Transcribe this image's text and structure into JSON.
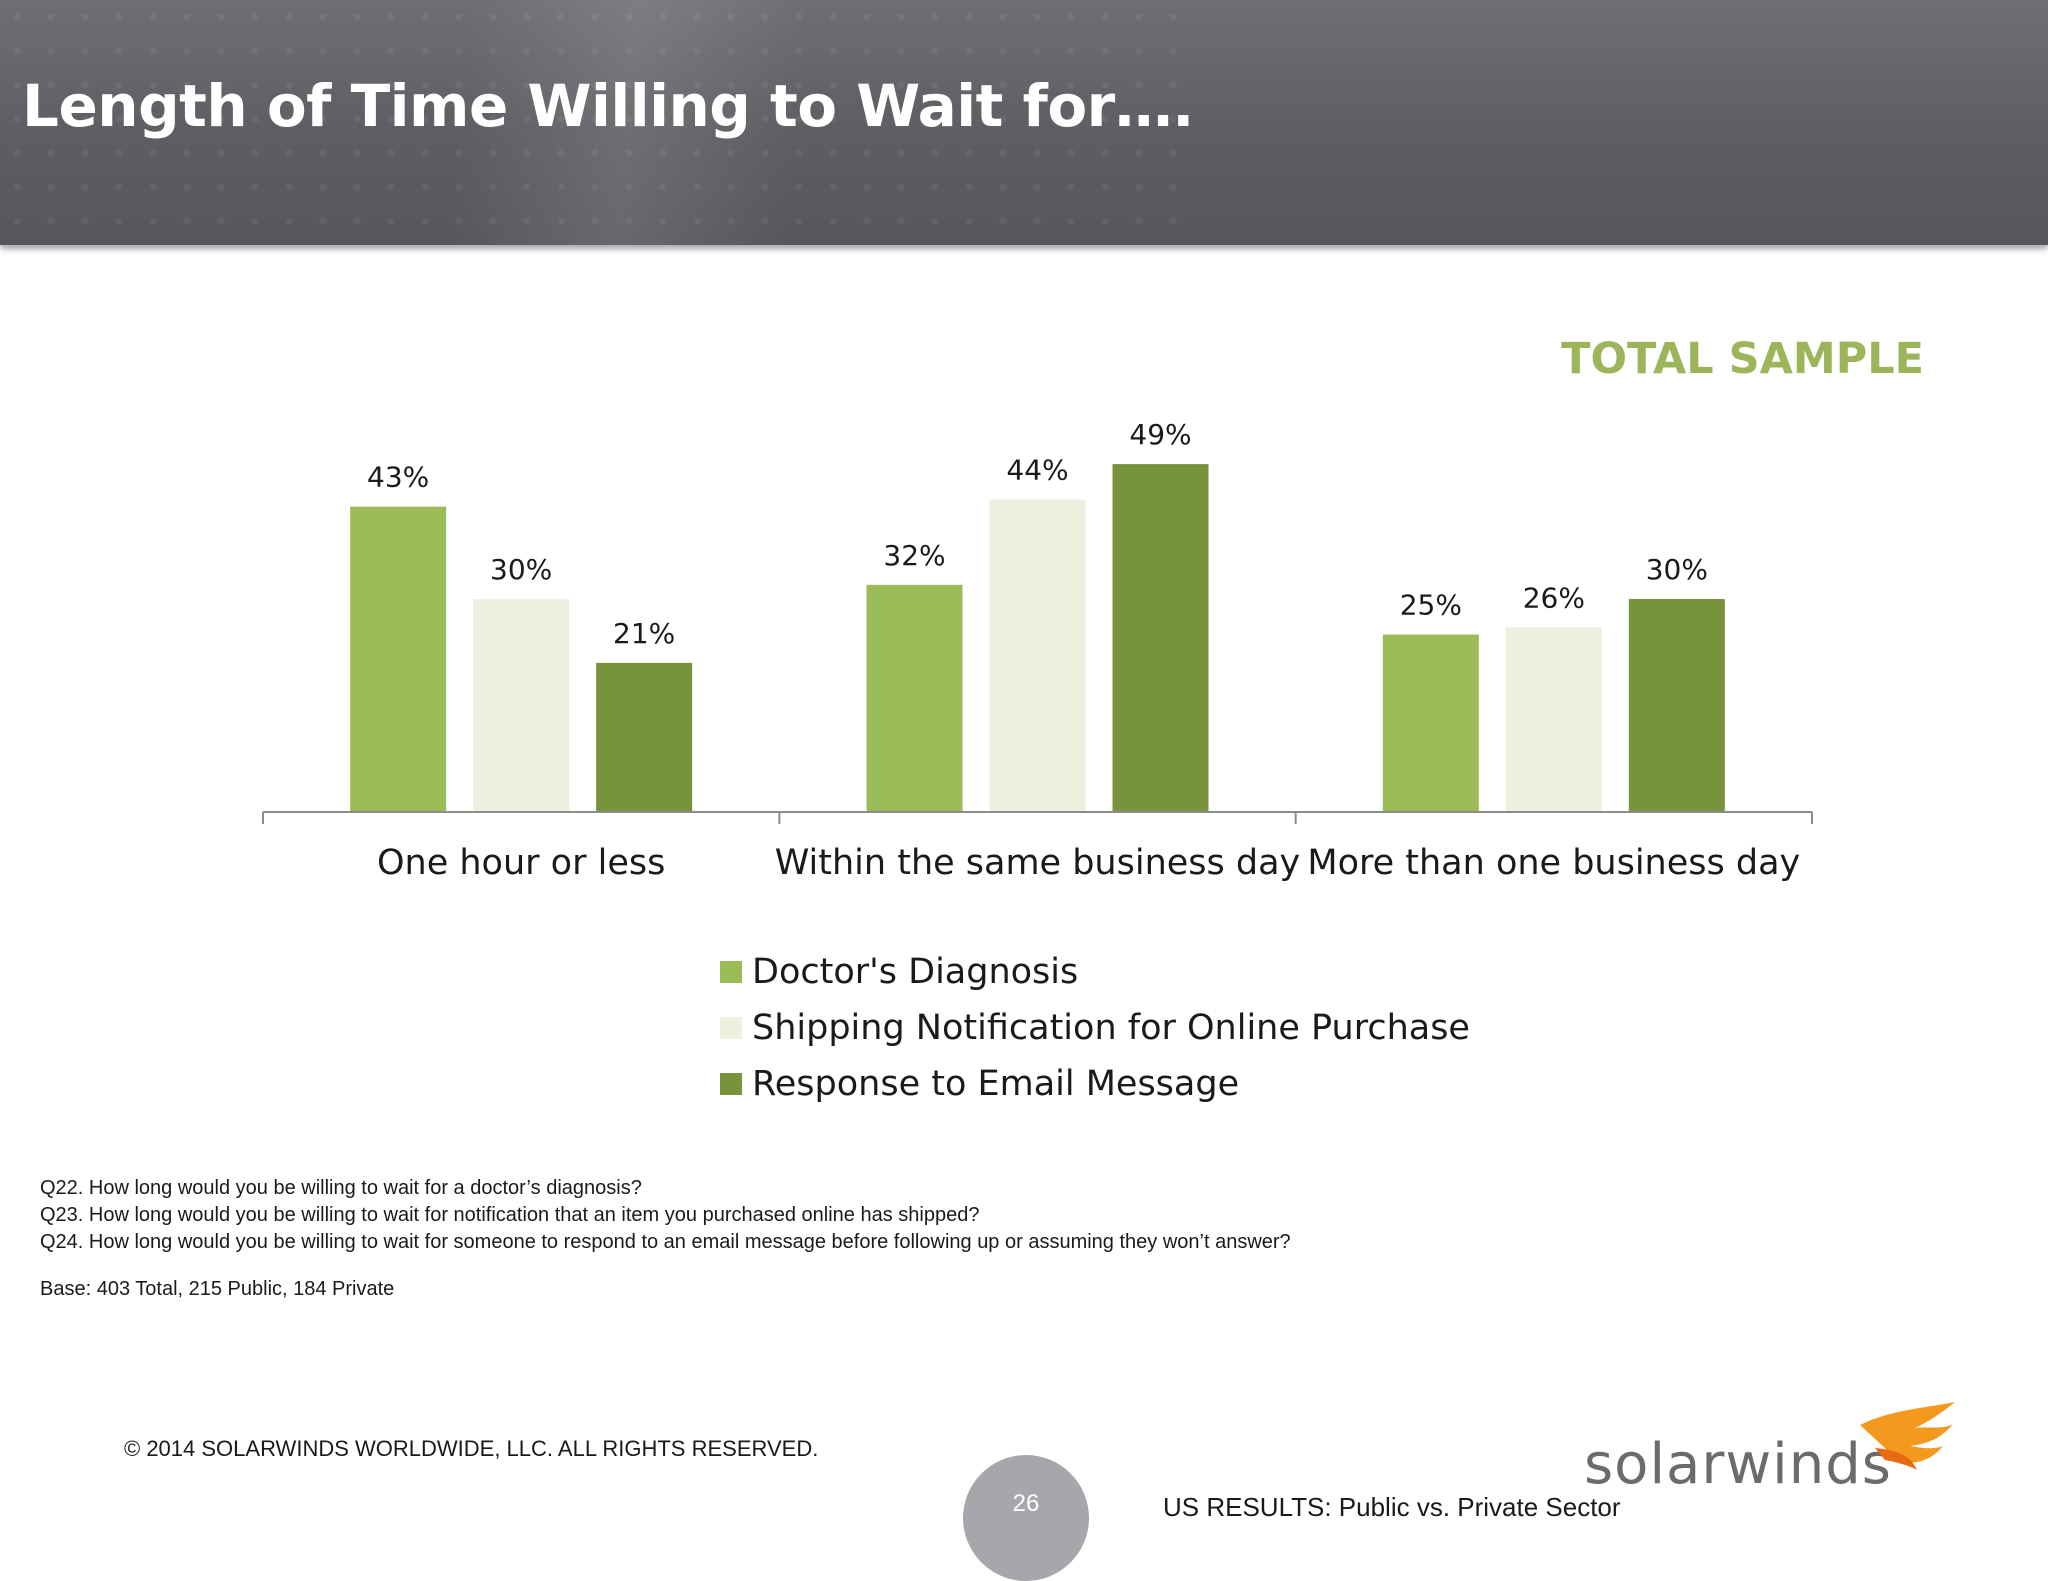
{
  "header": {
    "title": "Length of Time Willing to Wait for…."
  },
  "sample_label": "TOTAL SAMPLE",
  "chart_data": {
    "type": "bar",
    "categories": [
      "One hour or less",
      "Within the same business day",
      "More than one business day"
    ],
    "series": [
      {
        "name": "Doctor's Diagnosis",
        "values": [
          43,
          32,
          25
        ],
        "color": "#9bbb59"
      },
      {
        "name": "Shipping Notification for Online Purchase",
        "values": [
          30,
          44,
          26
        ],
        "color": "#ebf1de"
      },
      {
        "name": "Response to Email Message",
        "values": [
          21,
          49,
          30
        ],
        "color": "#77933c"
      }
    ],
    "value_format": "%",
    "ylim": [
      0,
      55
    ],
    "grid": false,
    "legend_position": "bottom"
  },
  "notes": {
    "q22": "Q22. How long would you be willing to wait for a doctor’s diagnosis?",
    "q23": "Q23. How long would you be willing to wait for notification that an item you purchased online has shipped?",
    "q24": "Q24. How long would you be willing to wait for someone to respond to an email message before following up or assuming they won’t answer?",
    "base": "Base:  403  Total, 215 Public, 184 Private"
  },
  "footer": {
    "copyright": "© 2014 SOLARWINDS WORLDWIDE, LLC.  ALL RIGHTS RESERVED.",
    "page_number": "26",
    "results_label": "US RESULTS:  Public vs. Private Sector",
    "logo_text": "solarwinds"
  }
}
